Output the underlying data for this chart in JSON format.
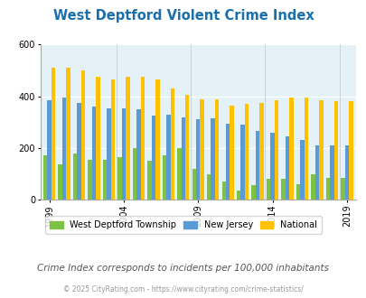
{
  "title": "West Deptford Violent Crime Index",
  "years": [
    1999,
    2000,
    2001,
    2002,
    2003,
    2004,
    2005,
    2006,
    2007,
    2008,
    2009,
    2010,
    2011,
    2012,
    2013,
    2014,
    2015,
    2016,
    2017,
    2018,
    2019
  ],
  "west_deptford": [
    170,
    135,
    180,
    155,
    155,
    165,
    200,
    150,
    170,
    200,
    120,
    100,
    70,
    35,
    55,
    80,
    80,
    60,
    100,
    85,
    85
  ],
  "new_jersey": [
    385,
    395,
    375,
    360,
    355,
    355,
    350,
    325,
    330,
    320,
    310,
    315,
    295,
    290,
    265,
    260,
    245,
    230,
    210,
    210,
    210
  ],
  "national": [
    510,
    510,
    500,
    475,
    465,
    475,
    475,
    465,
    430,
    405,
    390,
    390,
    365,
    370,
    375,
    385,
    395,
    395,
    385,
    380,
    380
  ],
  "colors": {
    "west_deptford": "#7dc242",
    "new_jersey": "#5b9bd5",
    "national": "#ffc000"
  },
  "background_color": "#e4f2f7",
  "ylim": [
    0,
    600
  ],
  "yticks": [
    0,
    200,
    400,
    600
  ],
  "xlabel_years": [
    1999,
    2004,
    2009,
    2014,
    2019
  ],
  "legend_labels": [
    "West Deptford Township",
    "New Jersey",
    "National"
  ],
  "subtitle": "Crime Index corresponds to incidents per 100,000 inhabitants",
  "footer": "© 2025 CityRating.com - https://www.cityrating.com/crime-statistics/",
  "title_color": "#1a6fad",
  "subtitle_color": "#555555",
  "footer_color": "#999999"
}
